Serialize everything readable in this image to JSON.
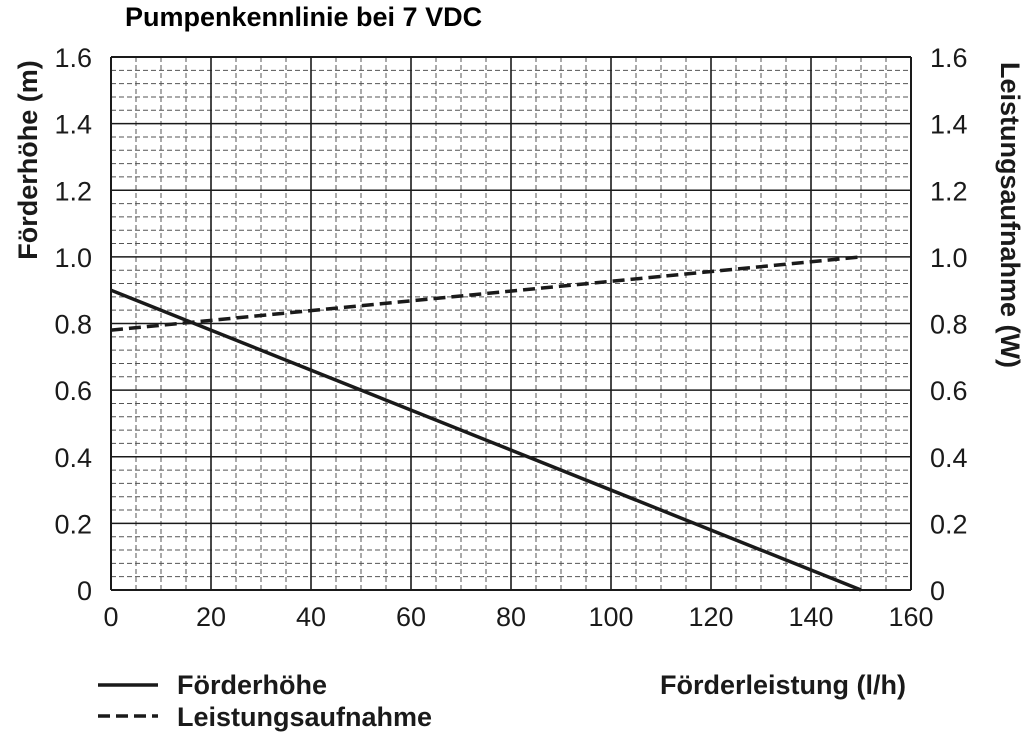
{
  "chart_data": {
    "type": "line",
    "title": "Pumpenkennlinie bei 7 VDC",
    "xlabel": "Förderleistung (l/h)",
    "ylabel_left": "Förderhöhe (m)",
    "ylabel_right": "Leistungsaufnahme (W)",
    "xlim": [
      0,
      160
    ],
    "ylim": [
      0,
      1.6
    ],
    "x_ticks": [
      "0",
      "20",
      "40",
      "60",
      "80",
      "100",
      "120",
      "140",
      "160"
    ],
    "y_ticks": [
      "0",
      "0.2",
      "0.4",
      "0.6",
      "0.8",
      "1.0",
      "1.2",
      "1.4",
      "1.6"
    ],
    "grid": true,
    "legend_position": "bottom-left",
    "series": [
      {
        "name": "Förderhöhe",
        "style": "solid",
        "axis": "left",
        "points": [
          [
            0,
            0.9
          ],
          [
            150,
            0.0
          ]
        ]
      },
      {
        "name": "Leistungsaufnahme",
        "style": "dashed",
        "axis": "right",
        "points": [
          [
            0,
            0.78
          ],
          [
            150,
            1.0
          ]
        ]
      }
    ],
    "colors": {
      "line": "#1a1a1a",
      "grid_major": "#1a1a1a",
      "grid_minor": "#555555"
    }
  }
}
